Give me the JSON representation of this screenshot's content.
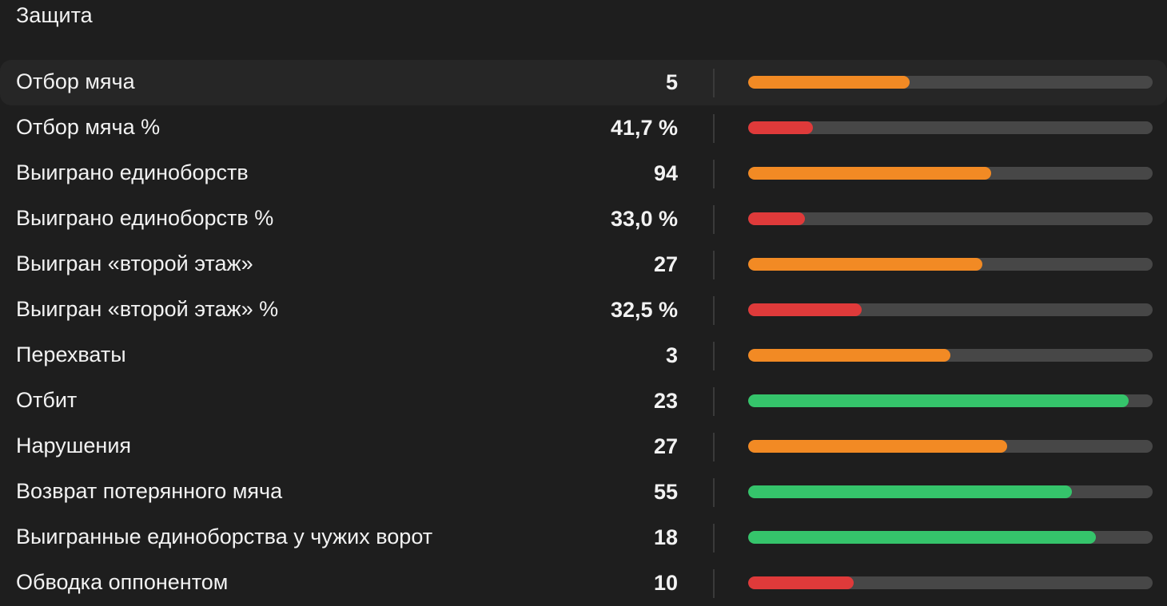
{
  "section": {
    "title": "Защита"
  },
  "colors": {
    "orange": "#f28a24",
    "red": "#df3a3a",
    "green": "#35c46b",
    "track": "#474747",
    "background": "#1e1e1e"
  },
  "rows": [
    {
      "label": "Отбор мяча",
      "value": "5",
      "percent": 0.4,
      "color": "orange"
    },
    {
      "label": "Отбор мяча %",
      "value": "41,7 %",
      "percent": 0.16,
      "color": "red"
    },
    {
      "label": "Выиграно единоборств",
      "value": "94",
      "percent": 0.6,
      "color": "orange"
    },
    {
      "label": "Выиграно единоборств %",
      "value": "33,0 %",
      "percent": 0.14,
      "color": "red"
    },
    {
      "label": "Выигран «второй этаж»",
      "value": "27",
      "percent": 0.58,
      "color": "orange"
    },
    {
      "label": "Выигран «второй этаж» %",
      "value": "32,5 %",
      "percent": 0.28,
      "color": "red"
    },
    {
      "label": "Перехваты",
      "value": "3",
      "percent": 0.5,
      "color": "orange"
    },
    {
      "label": "Отбит",
      "value": "23",
      "percent": 0.94,
      "color": "green"
    },
    {
      "label": "Нарушения",
      "value": "27",
      "percent": 0.64,
      "color": "orange"
    },
    {
      "label": "Возврат потерянного мяча",
      "value": "55",
      "percent": 0.8,
      "color": "green"
    },
    {
      "label": "Выигранные единоборства у чужих ворот",
      "value": "18",
      "percent": 0.86,
      "color": "green"
    },
    {
      "label": "Обводка оппонентом",
      "value": "10",
      "percent": 0.26,
      "color": "red"
    }
  ]
}
